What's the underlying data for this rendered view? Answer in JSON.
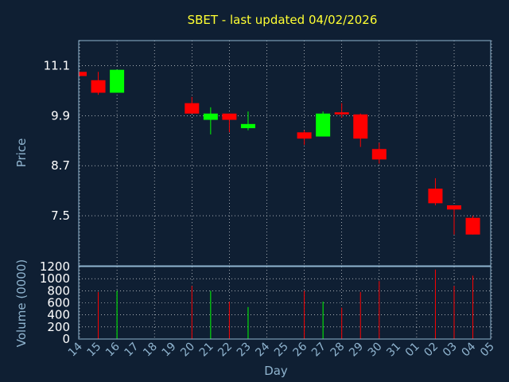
{
  "colors": {
    "background": "#0f1f33",
    "up": "#00ff00",
    "down": "#ff0000",
    "grid": "#ffffff",
    "axis_text": "#8fb4cf",
    "title": "#ffff33"
  },
  "chart_data": [
    {
      "type": "candlestick",
      "title": "SBET - last updated 04/02/2026",
      "ylabel": "Price",
      "ylim": [
        6.3,
        11.7
      ],
      "yticks": [
        "11.1",
        "9.9",
        "8.7",
        "7.5"
      ],
      "grid": true,
      "candles": [
        {
          "day": "14",
          "open": 10.95,
          "high": 10.95,
          "low": 10.85,
          "close": 10.85
        },
        {
          "day": "15",
          "open": 10.75,
          "high": 10.95,
          "low": 10.4,
          "close": 10.45
        },
        {
          "day": "16",
          "open": 10.45,
          "high": 11.0,
          "low": 10.45,
          "close": 11.0
        },
        {
          "day": "20",
          "open": 10.2,
          "high": 10.35,
          "low": 9.95,
          "close": 9.95
        },
        {
          "day": "21",
          "open": 9.8,
          "high": 10.1,
          "low": 9.45,
          "close": 9.95
        },
        {
          "day": "22",
          "open": 9.95,
          "high": 9.95,
          "low": 9.5,
          "close": 9.8
        },
        {
          "day": "23",
          "open": 9.6,
          "high": 10.0,
          "low": 9.55,
          "close": 9.7
        },
        {
          "day": "26",
          "open": 9.5,
          "high": 9.55,
          "low": 9.2,
          "close": 9.35
        },
        {
          "day": "27",
          "open": 9.4,
          "high": 10.0,
          "low": 9.4,
          "close": 9.95
        },
        {
          "day": "28",
          "open": 9.98,
          "high": 10.2,
          "low": 9.85,
          "close": 9.93
        },
        {
          "day": "29",
          "open": 9.93,
          "high": 9.95,
          "low": 9.15,
          "close": 9.35
        },
        {
          "day": "30",
          "open": 9.1,
          "high": 9.25,
          "low": 8.75,
          "close": 8.85
        },
        {
          "day": "02",
          "open": 8.15,
          "high": 8.4,
          "low": 7.75,
          "close": 7.8
        },
        {
          "day": "03",
          "open": 7.75,
          "high": 7.75,
          "low": 7.05,
          "close": 7.65
        },
        {
          "day": "04",
          "open": 7.45,
          "high": 7.5,
          "low": 7.05,
          "close": 7.05
        }
      ]
    },
    {
      "type": "bar",
      "ylabel": "Volume (0000)",
      "xlabel": "Day",
      "ylim": [
        0,
        1200
      ],
      "yticks": [
        "1200",
        "1000",
        "800",
        "600",
        "400",
        "200",
        "0"
      ],
      "categories": [
        "14",
        "15",
        "16",
        "17",
        "18",
        "19",
        "20",
        "21",
        "22",
        "23",
        "24",
        "25",
        "26",
        "27",
        "28",
        "29",
        "30",
        "31",
        "01",
        "02",
        "03",
        "04",
        "05"
      ],
      "volumes": [
        {
          "day": "15",
          "value": 780,
          "dir": "down"
        },
        {
          "day": "16",
          "value": 800,
          "dir": "up"
        },
        {
          "day": "20",
          "value": 880,
          "dir": "down"
        },
        {
          "day": "21",
          "value": 800,
          "dir": "up"
        },
        {
          "day": "22",
          "value": 620,
          "dir": "down"
        },
        {
          "day": "23",
          "value": 530,
          "dir": "up"
        },
        {
          "day": "26",
          "value": 800,
          "dir": "down"
        },
        {
          "day": "27",
          "value": 620,
          "dir": "up"
        },
        {
          "day": "28",
          "value": 520,
          "dir": "down"
        },
        {
          "day": "29",
          "value": 780,
          "dir": "down"
        },
        {
          "day": "30",
          "value": 960,
          "dir": "down"
        },
        {
          "day": "02",
          "value": 1150,
          "dir": "down"
        },
        {
          "day": "03",
          "value": 880,
          "dir": "down"
        },
        {
          "day": "04",
          "value": 1050,
          "dir": "down"
        }
      ]
    }
  ]
}
